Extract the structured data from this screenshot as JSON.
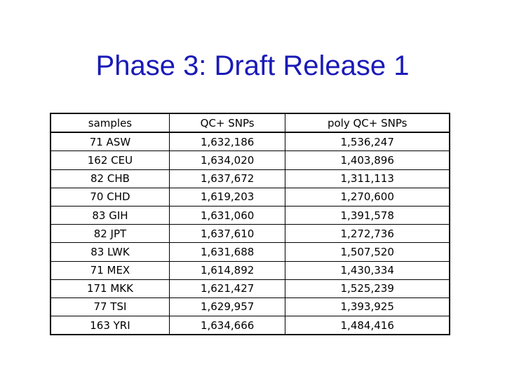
{
  "slide": {
    "title": "Phase 3: Draft Release 1"
  },
  "table": {
    "headers": [
      "samples",
      "QC+ SNPs",
      "poly QC+ SNPs"
    ],
    "rows": [
      [
        "71 ASW",
        "1,632,186",
        "1,536,247"
      ],
      [
        "162 CEU",
        "1,634,020",
        "1,403,896"
      ],
      [
        "82 CHB",
        "1,637,672",
        "1,311,113"
      ],
      [
        "70 CHD",
        "1,619,203",
        "1,270,600"
      ],
      [
        "83 GIH",
        "1,631,060",
        "1,391,578"
      ],
      [
        "82 JPT",
        "1,637,610",
        "1,272,736"
      ],
      [
        "83 LWK",
        "1,631,688",
        "1,507,520"
      ],
      [
        "71 MEX",
        "1,614,892",
        "1,430,334"
      ],
      [
        "171 MKK",
        "1,621,427",
        "1,525,239"
      ],
      [
        "77 TSI",
        "1,629,957",
        "1,393,925"
      ],
      [
        "163 YRI",
        "1,634,666",
        "1,484,416"
      ]
    ]
  },
  "colors": {
    "title": "#1a1ab8",
    "text": "#000000",
    "border": "#000000",
    "background": "#ffffff"
  }
}
